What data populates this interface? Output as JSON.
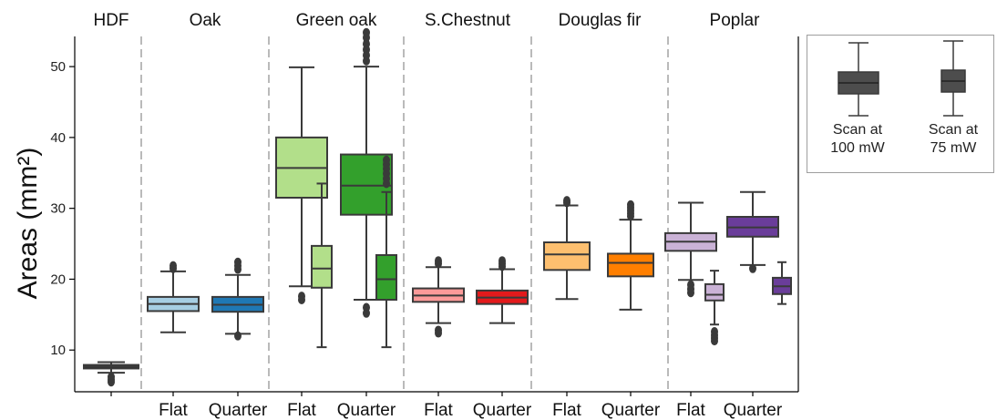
{
  "chart_data": {
    "type": "boxplot",
    "ylabel": "Areas (mm²)",
    "ylim": [
      5,
      55
    ],
    "yticks": [
      10,
      20,
      30,
      40,
      50
    ],
    "groups": [
      {
        "name": "HDF",
        "boxes": [
          {
            "label": "",
            "color": "#2d2d2d",
            "scan": "100 mW",
            "q1": 7.4,
            "median": 7.7,
            "q3": 7.9,
            "whisker_low": 6.8,
            "whisker_high": 8.3,
            "outliers": [
              6.2,
              5.8,
              5.5
            ]
          }
        ]
      },
      {
        "name": "Oak",
        "boxes": [
          {
            "label": "Flat",
            "color": "#a6cee3",
            "scan": "100 mW",
            "q1": 15.5,
            "median": 16.5,
            "q3": 17.5,
            "whisker_low": 12.5,
            "whisker_high": 21.1,
            "outliers": [
              21.5,
              21.9
            ]
          },
          {
            "label": "Quarter",
            "color": "#1f78b4",
            "scan": "100 mW",
            "q1": 15.4,
            "median": 16.4,
            "q3": 17.5,
            "whisker_low": 12.3,
            "whisker_high": 20.6,
            "outliers": [
              12.0,
              21.4,
              21.9,
              22.4
            ]
          }
        ]
      },
      {
        "name": "Green oak",
        "boxes": [
          {
            "label": "Flat",
            "color": "#b2df8a",
            "scan": "100 mW",
            "q1": 31.5,
            "median": 35.7,
            "q3": 40.0,
            "whisker_low": 19.0,
            "whisker_high": 49.9,
            "outliers": [
              17.6,
              17.1
            ]
          },
          {
            "label": "",
            "color": "#b2df8a",
            "scan": "75 mW",
            "q1": 18.8,
            "median": 21.5,
            "q3": 24.7,
            "whisker_low": 10.4,
            "whisker_high": 33.5,
            "outliers": []
          },
          {
            "label": "Quarter",
            "color": "#33a02c",
            "scan": "100 mW",
            "q1": 29.1,
            "median": 33.2,
            "q3": 37.6,
            "whisker_low": 17.1,
            "whisker_high": 50.0,
            "outliers": [
              16.0,
              15.2,
              50.8,
              51.6,
              52.4,
              53.2,
              54.1,
              54.8
            ]
          },
          {
            "label": "",
            "color": "#33a02c",
            "scan": "75 mW",
            "q1": 17.1,
            "median": 20.0,
            "q3": 23.4,
            "whisker_low": 10.4,
            "whisker_high": 32.3,
            "outliers": [
              33.5,
              34.2,
              34.9,
              35.6,
              36.2,
              36.8
            ]
          }
        ]
      },
      {
        "name": "S.Chestnut",
        "boxes": [
          {
            "label": "Flat",
            "color": "#fb9a99",
            "scan": "100 mW",
            "q1": 16.8,
            "median": 17.7,
            "q3": 18.7,
            "whisker_low": 13.8,
            "whisker_high": 21.7,
            "outliers": [
              12.8,
              12.4,
              22.2,
              22.6
            ]
          },
          {
            "label": "Quarter",
            "color": "#e31a1c",
            "scan": "100 mW",
            "q1": 16.5,
            "median": 17.4,
            "q3": 18.4,
            "whisker_low": 13.8,
            "whisker_high": 21.4,
            "outliers": [
              21.8,
              22.2,
              22.6
            ]
          }
        ]
      },
      {
        "name": "Douglas fir",
        "boxes": [
          {
            "label": "Flat",
            "color": "#fdbf6f",
            "scan": "100 mW",
            "q1": 21.3,
            "median": 23.5,
            "q3": 25.2,
            "whisker_low": 17.2,
            "whisker_high": 30.4,
            "outliers": [
              30.8,
              31.1
            ]
          },
          {
            "label": "Quarter",
            "color": "#ff7f00",
            "scan": "100 mW",
            "q1": 20.4,
            "median": 22.3,
            "q3": 23.6,
            "whisker_low": 15.7,
            "whisker_high": 28.4,
            "outliers": [
              28.9,
              29.3,
              29.7,
              30.1,
              30.5
            ]
          }
        ]
      },
      {
        "name": "Poplar",
        "boxes": [
          {
            "label": "Flat",
            "color": "#cab2d6",
            "scan": "100 mW",
            "q1": 24.0,
            "median": 25.3,
            "q3": 26.5,
            "whisker_low": 19.9,
            "whisker_high": 30.8,
            "outliers": [
              19.2,
              18.6,
              18.1
            ]
          },
          {
            "label": "",
            "color": "#cab2d6",
            "scan": "75 mW",
            "q1": 17.0,
            "median": 17.8,
            "q3": 19.3,
            "whisker_low": 13.6,
            "whisker_high": 21.2,
            "outliers": [
              12.6,
              12.1,
              11.7,
              11.3
            ]
          },
          {
            "label": "Quarter",
            "color": "#6a3d9a",
            "scan": "100 mW",
            "q1": 26.0,
            "median": 27.3,
            "q3": 28.8,
            "whisker_low": 22.0,
            "whisker_high": 32.3,
            "outliers": [
              21.5
            ]
          },
          {
            "label": "",
            "color": "#6a3d9a",
            "scan": "75 mW",
            "q1": 17.9,
            "median": 19.0,
            "q3": 20.2,
            "whisker_low": 16.5,
            "whisker_high": 22.4,
            "outliers": []
          }
        ]
      }
    ],
    "legend": {
      "placement": "right",
      "items": [
        {
          "label_line1": "Scan at",
          "label_line2": "100 mW",
          "color": "#4d4d4d"
        },
        {
          "label_line1": "Scan at",
          "label_line2": "75 mW",
          "color": "#4d4d4d"
        }
      ]
    }
  }
}
